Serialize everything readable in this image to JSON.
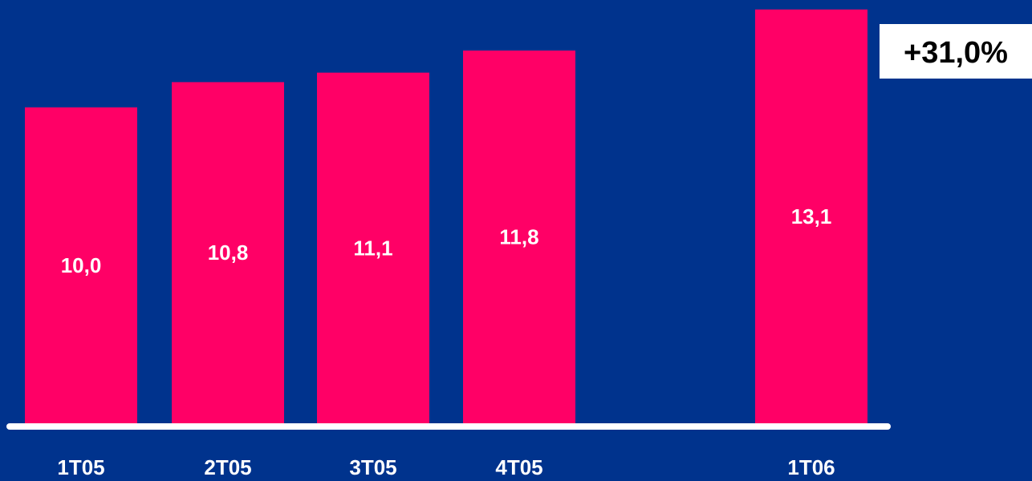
{
  "colors": {
    "background": "#00338d",
    "bar": "#ff0066",
    "axis": "#ffffff",
    "label": "#ffffff",
    "badge_bg": "#ffffff",
    "badge_text": "#000000"
  },
  "growth_badge": "+31,0%",
  "chart_data": {
    "type": "bar",
    "categories": [
      "1T05",
      "2T05",
      "3T05",
      "4T05",
      "1T06"
    ],
    "values": [
      10.0,
      10.8,
      11.1,
      11.8,
      13.1
    ],
    "data_labels": [
      "10,0",
      "10,8",
      "11,1",
      "11,8",
      "13,1"
    ],
    "title": "",
    "xlabel": "",
    "ylabel": "",
    "ylim": [
      0,
      13.4
    ],
    "grid": false,
    "legend": "none"
  }
}
